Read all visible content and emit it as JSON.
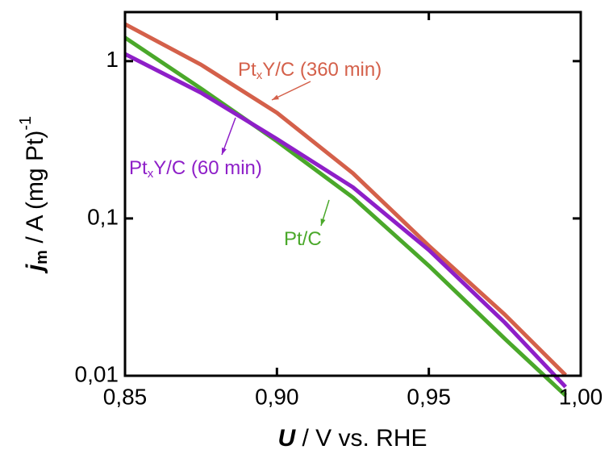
{
  "chart_data": {
    "type": "line",
    "xlabel_parts": [
      "U",
      " / V vs. RHE"
    ],
    "ylabel_parts": [
      "j",
      "m",
      " / A (mg Pt)",
      "-1"
    ],
    "log_y": true,
    "xlim": [
      0.85,
      1.0
    ],
    "ylim": [
      0.01,
      2.05
    ],
    "xticks": [
      {
        "value": 0.85,
        "label": "0,85"
      },
      {
        "value": 0.9,
        "label": "0,90"
      },
      {
        "value": 0.95,
        "label": "0,95"
      },
      {
        "value": 1.0,
        "label": "1,00"
      }
    ],
    "yticks": [
      {
        "value": 0.01,
        "label": "0,01"
      },
      {
        "value": 0.1,
        "label": "0,1"
      },
      1
    ],
    "x": [
      0.85,
      0.875,
      0.9,
      0.925,
      0.95,
      0.975,
      0.995
    ],
    "series": [
      {
        "name": [
          "Pt",
          "x",
          "Y/C (360 min)"
        ],
        "color": "#d4604a",
        "values": [
          1.72,
          0.95,
          0.47,
          0.194,
          0.067,
          0.0245,
          0.0101
        ]
      },
      {
        "name": [
          "Pt/C"
        ],
        "color": "#4aa82a",
        "values": [
          1.41,
          0.67,
          0.31,
          0.136,
          0.05,
          0.0172,
          0.0075
        ]
      },
      {
        "name": [
          "Pt",
          "x",
          "Y/C (60 min)"
        ],
        "color": "#8e1fc8",
        "values": [
          1.11,
          0.63,
          0.32,
          0.158,
          0.063,
          0.0218,
          0.0085
        ]
      }
    ]
  }
}
